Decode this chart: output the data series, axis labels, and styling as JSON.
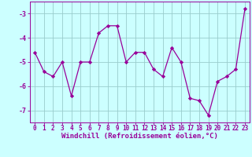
{
  "x": [
    0,
    1,
    2,
    3,
    4,
    5,
    6,
    7,
    8,
    9,
    10,
    11,
    12,
    13,
    14,
    15,
    16,
    17,
    18,
    19,
    20,
    21,
    22,
    23
  ],
  "y": [
    -4.6,
    -5.4,
    -5.6,
    -5.0,
    -6.4,
    -5.0,
    -5.0,
    -3.8,
    -3.5,
    -3.5,
    -5.0,
    -4.6,
    -4.6,
    -5.3,
    -5.6,
    -4.4,
    -5.0,
    -6.5,
    -6.6,
    -7.2,
    -5.8,
    -5.6,
    -5.3,
    -2.8
  ],
  "line_color": "#990099",
  "marker": "D",
  "marker_size": 2.2,
  "bg_color": "#ccffff",
  "grid_color": "#99cccc",
  "xlabel": "Windchill (Refroidissement éolien,°C)",
  "xlabel_color": "#990099",
  "xlabel_fontsize": 6.5,
  "tick_color": "#990099",
  "tick_fontsize": 5.5,
  "ylim": [
    -7.5,
    -2.5
  ],
  "xlim": [
    -0.5,
    23.5
  ],
  "yticks": [
    -7,
    -6,
    -5,
    -4,
    -3
  ],
  "xticks": [
    0,
    1,
    2,
    3,
    4,
    5,
    6,
    7,
    8,
    9,
    10,
    11,
    12,
    13,
    14,
    15,
    16,
    17,
    18,
    19,
    20,
    21,
    22,
    23
  ]
}
